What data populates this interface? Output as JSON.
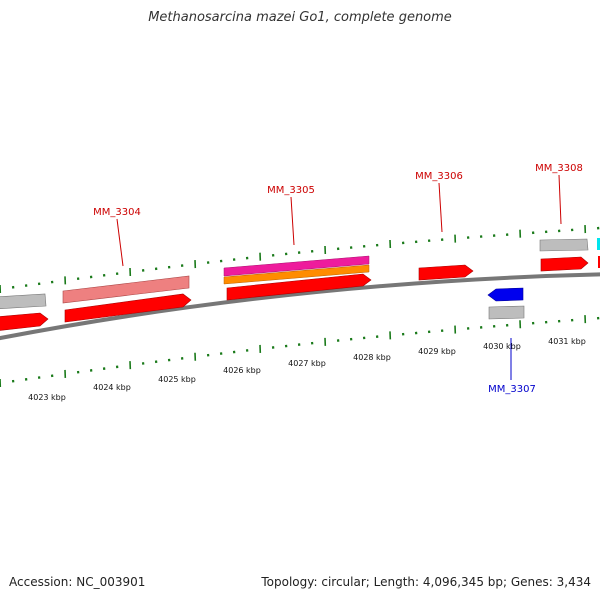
{
  "title": "Methanosarcina mazei Go1, complete genome",
  "footer": {
    "accession": "Accession: NC_003901",
    "summary": "Topology: circular; Length: 4,096,345 bp; Genes: 3,434"
  },
  "scale_labels": [
    "4023 kbp",
    "4024 kbp",
    "4025 kbp",
    "4026 kbp",
    "4027 kbp",
    "4028 kbp",
    "4029 kbp",
    "4030 kbp",
    "4031 kbp"
  ],
  "gene_labels": [
    {
      "name": "MM_3304",
      "strand": "forward"
    },
    {
      "name": "MM_3305",
      "strand": "forward"
    },
    {
      "name": "MM_3306",
      "strand": "forward"
    },
    {
      "name": "MM_3308",
      "strand": "forward"
    },
    {
      "name": "MM_3307",
      "strand": "reverse"
    }
  ],
  "colors": {
    "forward_gene": "#ff0000",
    "forward_cds_light": "#ee8080",
    "reverse_gene": "#0000ee",
    "magenta_feature": "#ee1c9c",
    "orange_feature": "#ff8c00",
    "cyan_feature": "#00e5ee",
    "gray_feature": "#bdbdbd",
    "backbone": "#777777",
    "tick": "#1a7a1a",
    "label_forward": "#cc0000",
    "label_reverse": "#0000cc"
  }
}
